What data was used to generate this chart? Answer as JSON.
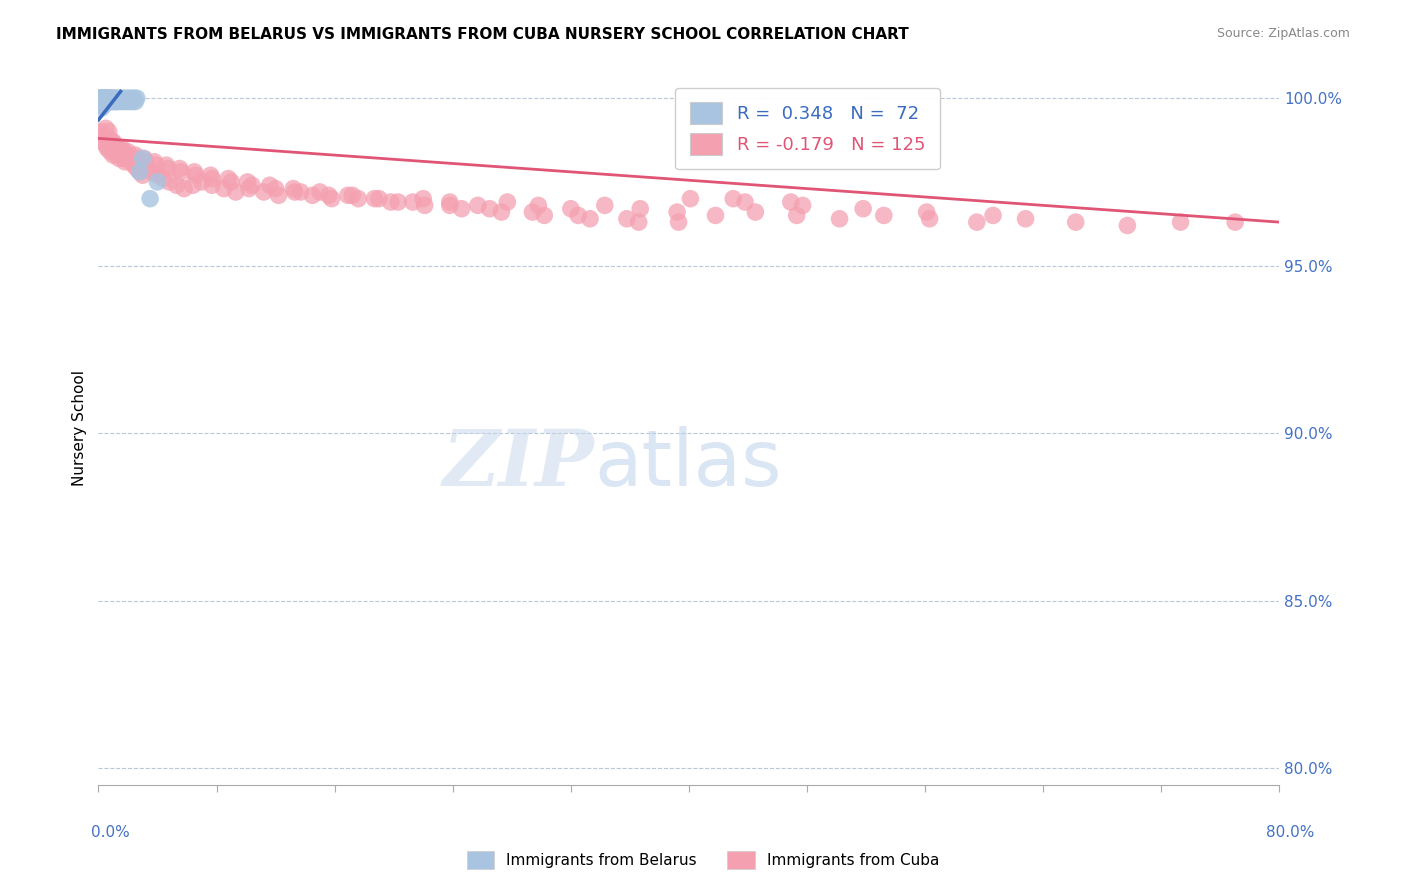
{
  "title": "IMMIGRANTS FROM BELARUS VS IMMIGRANTS FROM CUBA NURSERY SCHOOL CORRELATION CHART",
  "source": "Source: ZipAtlas.com",
  "ylabel": "Nursery School",
  "xlim": [
    0.0,
    0.8
  ],
  "ylim": [
    0.795,
    1.008
  ],
  "y_ticks": [
    0.8,
    0.85,
    0.9,
    0.95,
    1.0
  ],
  "y_tick_labels": [
    "80.0%",
    "85.0%",
    "90.0%",
    "95.0%",
    "100.0%"
  ],
  "legend1_label": "R =  0.348   N =  72",
  "legend2_label": "R = -0.179   N = 125",
  "legend1_color": "#a8c4e0",
  "legend2_color": "#f4a0b0",
  "trendline1_color": "#3a6bbf",
  "trendline2_color": "#e05575",
  "scatter1_color": "#a8c4e0",
  "scatter2_color": "#f4a0b0",
  "grid_color": "#b8c8d8",
  "belarus_x": [
    0.001,
    0.001,
    0.001,
    0.001,
    0.002,
    0.002,
    0.002,
    0.002,
    0.002,
    0.002,
    0.002,
    0.002,
    0.002,
    0.002,
    0.002,
    0.002,
    0.003,
    0.003,
    0.003,
    0.003,
    0.003,
    0.003,
    0.003,
    0.003,
    0.003,
    0.004,
    0.004,
    0.004,
    0.004,
    0.004,
    0.004,
    0.004,
    0.005,
    0.005,
    0.005,
    0.005,
    0.005,
    0.006,
    0.006,
    0.006,
    0.006,
    0.007,
    0.007,
    0.007,
    0.008,
    0.008,
    0.009,
    0.009,
    0.01,
    0.01,
    0.011,
    0.011,
    0.012,
    0.012,
    0.013,
    0.014,
    0.015,
    0.016,
    0.017,
    0.018,
    0.019,
    0.02,
    0.021,
    0.022,
    0.023,
    0.024,
    0.025,
    0.026,
    0.028,
    0.03,
    0.035,
    0.04
  ],
  "belarus_y": [
    0.998,
    0.999,
    1.0,
    1.0,
    0.997,
    0.998,
    0.999,
    0.999,
    1.0,
    1.0,
    1.0,
    1.0,
    1.0,
    1.0,
    1.0,
    1.0,
    0.998,
    0.999,
    0.999,
    1.0,
    1.0,
    1.0,
    1.0,
    1.0,
    1.0,
    0.998,
    0.999,
    0.999,
    1.0,
    1.0,
    1.0,
    1.0,
    0.999,
    0.999,
    1.0,
    1.0,
    1.0,
    0.999,
    0.999,
    1.0,
    1.0,
    0.999,
    1.0,
    1.0,
    0.999,
    1.0,
    0.999,
    1.0,
    0.999,
    1.0,
    0.999,
    1.0,
    0.999,
    1.0,
    0.999,
    1.0,
    0.999,
    1.0,
    0.999,
    1.0,
    0.999,
    1.0,
    0.999,
    1.0,
    0.999,
    1.0,
    0.999,
    1.0,
    0.978,
    0.982,
    0.97,
    0.975
  ],
  "belarus_trendline_x": [
    0.0,
    0.015
  ],
  "belarus_trendline_y": [
    0.9935,
    1.002
  ],
  "cuba_trendline_x": [
    0.0,
    0.8
  ],
  "cuba_trendline_y": [
    0.988,
    0.963
  ],
  "cuba_x": [
    0.002,
    0.003,
    0.004,
    0.005,
    0.005,
    0.006,
    0.006,
    0.007,
    0.007,
    0.008,
    0.008,
    0.009,
    0.01,
    0.01,
    0.011,
    0.012,
    0.013,
    0.014,
    0.015,
    0.016,
    0.017,
    0.018,
    0.019,
    0.02,
    0.022,
    0.024,
    0.026,
    0.028,
    0.03,
    0.033,
    0.036,
    0.04,
    0.044,
    0.048,
    0.053,
    0.058,
    0.064,
    0.07,
    0.077,
    0.085,
    0.093,
    0.102,
    0.112,
    0.122,
    0.133,
    0.145,
    0.158,
    0.172,
    0.187,
    0.203,
    0.22,
    0.238,
    0.257,
    0.277,
    0.298,
    0.32,
    0.343,
    0.367,
    0.392,
    0.418,
    0.445,
    0.473,
    0.502,
    0.532,
    0.563,
    0.595,
    0.628,
    0.662,
    0.697,
    0.733,
    0.77,
    0.007,
    0.009,
    0.011,
    0.014,
    0.017,
    0.021,
    0.026,
    0.032,
    0.039,
    0.047,
    0.056,
    0.066,
    0.077,
    0.09,
    0.104,
    0.12,
    0.137,
    0.156,
    0.176,
    0.198,
    0.221,
    0.246,
    0.273,
    0.302,
    0.333,
    0.366,
    0.401,
    0.438,
    0.477,
    0.518,
    0.561,
    0.606,
    0.016,
    0.02,
    0.025,
    0.031,
    0.038,
    0.046,
    0.055,
    0.065,
    0.076,
    0.088,
    0.101,
    0.116,
    0.132,
    0.15,
    0.169,
    0.19,
    0.213,
    0.238,
    0.265,
    0.294,
    0.325,
    0.358,
    0.393,
    0.43,
    0.469
  ],
  "cuba_y": [
    0.99,
    0.989,
    0.987,
    0.986,
    0.991,
    0.988,
    0.985,
    0.987,
    0.99,
    0.986,
    0.984,
    0.985,
    0.987,
    0.983,
    0.984,
    0.985,
    0.983,
    0.982,
    0.984,
    0.983,
    0.982,
    0.981,
    0.983,
    0.982,
    0.981,
    0.98,
    0.979,
    0.978,
    0.977,
    0.979,
    0.978,
    0.977,
    0.976,
    0.975,
    0.974,
    0.973,
    0.974,
    0.975,
    0.974,
    0.973,
    0.972,
    0.973,
    0.972,
    0.971,
    0.972,
    0.971,
    0.97,
    0.971,
    0.97,
    0.969,
    0.97,
    0.969,
    0.968,
    0.969,
    0.968,
    0.967,
    0.968,
    0.967,
    0.966,
    0.965,
    0.966,
    0.965,
    0.964,
    0.965,
    0.964,
    0.963,
    0.964,
    0.963,
    0.962,
    0.963,
    0.963,
    0.988,
    0.987,
    0.986,
    0.985,
    0.984,
    0.983,
    0.982,
    0.981,
    0.98,
    0.979,
    0.978,
    0.977,
    0.976,
    0.975,
    0.974,
    0.973,
    0.972,
    0.971,
    0.97,
    0.969,
    0.968,
    0.967,
    0.966,
    0.965,
    0.964,
    0.963,
    0.97,
    0.969,
    0.968,
    0.967,
    0.966,
    0.965,
    0.985,
    0.984,
    0.983,
    0.982,
    0.981,
    0.98,
    0.979,
    0.978,
    0.977,
    0.976,
    0.975,
    0.974,
    0.973,
    0.972,
    0.971,
    0.97,
    0.969,
    0.968,
    0.967,
    0.966,
    0.965,
    0.964,
    0.963,
    0.97,
    0.969
  ]
}
